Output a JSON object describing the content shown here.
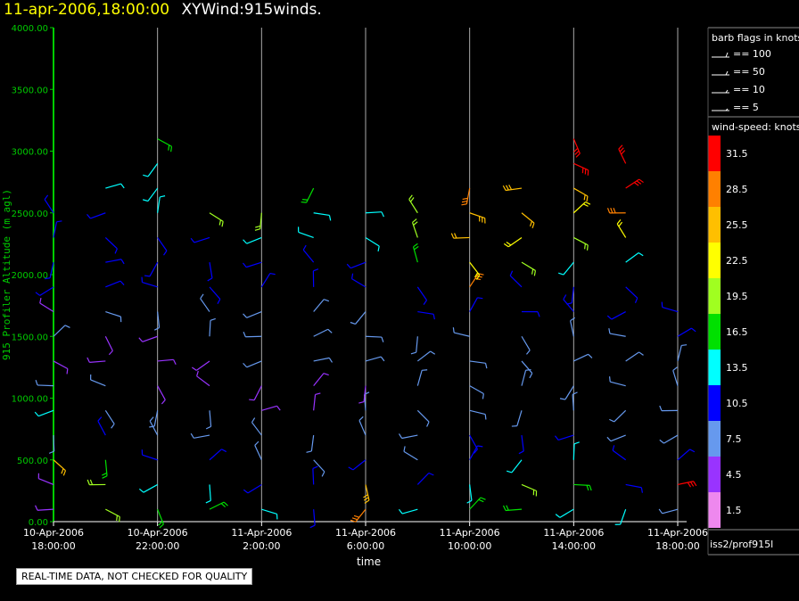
{
  "header": {
    "time": "11-apr-2006,18:00:00",
    "name": "XYWind:915winds."
  },
  "disclaimer": "REAL-TIME DATA, NOT CHECKED FOR QUALITY",
  "chart_data": {
    "type": "scatter",
    "title": "",
    "ylabel": "915 Profiler Altitude (m agl)",
    "xlabel": "time",
    "ylim": [
      0,
      4000
    ],
    "yticks": [
      "0.00",
      "500.00",
      "1000.00",
      "1500.00",
      "2000.00",
      "2500.00",
      "3000.00",
      "3500.00",
      "4000.00"
    ],
    "xlim": [
      "10-Apr-2006 18:00",
      "11-Apr-2006 18:00"
    ],
    "xticks": [
      {
        "line1": "10-Apr-2006",
        "line2": "18:00:00"
      },
      {
        "line1": "10-Apr-2006",
        "line2": "22:00:00"
      },
      {
        "line1": "11-Apr-2006",
        "line2": "2:00:00"
      },
      {
        "line1": "11-Apr-2006",
        "line2": "6:00:00"
      },
      {
        "line1": "11-Apr-2006",
        "line2": "10:00:00"
      },
      {
        "line1": "11-Apr-2006",
        "line2": "14:00:00"
      },
      {
        "line1": "11-Apr-2006",
        "line2": "18:00:00"
      }
    ],
    "grid": "vertical",
    "series": [
      {
        "time": "10-Apr-2006 18:00",
        "alt": [
          100,
          300,
          500,
          700,
          900,
          1100,
          1300,
          1500,
          1700,
          1900,
          2100,
          2300,
          2500
        ],
        "speed": [
          3,
          5,
          24,
          8,
          12,
          7,
          5,
          6,
          4,
          9,
          11,
          10,
          11
        ]
      },
      {
        "time": "10-Apr-2006 20:00",
        "alt": [
          100,
          300,
          500,
          700,
          900,
          1100,
          1300,
          1500,
          1700,
          1900,
          2100,
          2300,
          2500,
          2700
        ],
        "speed": [
          18,
          20,
          16,
          10,
          7,
          6,
          5,
          5,
          6,
          9,
          10,
          11,
          10,
          12
        ]
      },
      {
        "time": "10-Apr-2006 22:00",
        "alt": [
          100,
          300,
          500,
          700,
          900,
          1100,
          1300,
          1500,
          1700,
          1900,
          2100,
          2300,
          2500,
          2700,
          2900,
          3100
        ],
        "speed": [
          17,
          12,
          10,
          8,
          6,
          5,
          5,
          5,
          7,
          9,
          10,
          11,
          12,
          12,
          14,
          16
        ]
      },
      {
        "time": "11-Apr-2006 00:00",
        "alt": [
          100,
          300,
          500,
          700,
          900,
          1100,
          1300,
          1500,
          1700,
          1900,
          2100,
          2300,
          2500
        ],
        "speed": [
          15,
          12,
          9,
          7,
          6,
          5,
          5,
          6,
          7,
          9,
          10,
          11,
          18
        ]
      },
      {
        "time": "11-Apr-2006 02:00",
        "alt": [
          100,
          300,
          500,
          700,
          900,
          1100,
          1300,
          1500,
          1700,
          1900,
          2100,
          2300,
          2500
        ],
        "speed": [
          12,
          10,
          8,
          6,
          5,
          5,
          6,
          7,
          8,
          10,
          11,
          12,
          18
        ]
      },
      {
        "time": "11-Apr-2006 04:00",
        "alt": [
          100,
          300,
          500,
          700,
          900,
          1100,
          1300,
          1500,
          1700,
          1900,
          2100,
          2300,
          2500,
          2700
        ],
        "speed": [
          10,
          9,
          7,
          6,
          5,
          5,
          6,
          7,
          8,
          10,
          11,
          12,
          14,
          15
        ]
      },
      {
        "time": "11-Apr-2006 06:00",
        "alt": [
          100,
          300,
          500,
          700,
          900,
          1100,
          1300,
          1500,
          1700,
          1900,
          2100,
          2300,
          2500
        ],
        "speed": [
          28,
          26,
          9,
          7,
          6,
          5,
          6,
          7,
          8,
          10,
          11,
          12,
          13
        ]
      },
      {
        "time": "11-Apr-2006 08:00",
        "alt": [
          100,
          300,
          500,
          700,
          900,
          1100,
          1300,
          1500,
          1700,
          1900,
          2100,
          2300,
          2500
        ],
        "speed": [
          12,
          10,
          8,
          7,
          6,
          6,
          7,
          8,
          10,
          11,
          15,
          18,
          19
        ]
      },
      {
        "time": "11-Apr-2006 10:00",
        "alt": [
          100,
          300,
          500,
          700,
          900,
          1100,
          1300,
          1500,
          1700,
          1900,
          2100,
          2300,
          2500,
          2700
        ],
        "speed": [
          15,
          13,
          11,
          9,
          7,
          6,
          6,
          7,
          10,
          28,
          22,
          24,
          26,
          27
        ]
      },
      {
        "time": "11-Apr-2006 12:00",
        "alt": [
          100,
          300,
          500,
          700,
          900,
          1100,
          1300,
          1500,
          1700,
          1900,
          2100,
          2300,
          2500,
          2700
        ],
        "speed": [
          16,
          18,
          14,
          9,
          7,
          6,
          6,
          7,
          9,
          11,
          20,
          22,
          24,
          25
        ]
      },
      {
        "time": "11-Apr-2006 14:00",
        "alt": [
          100,
          300,
          500,
          700,
          900,
          1100,
          1300,
          1500,
          1700,
          1900,
          2100,
          2300,
          2500,
          2700,
          2900,
          3100
        ],
        "speed": [
          14,
          16,
          12,
          9,
          7,
          6,
          6,
          7,
          9,
          11,
          13,
          20,
          23,
          24,
          30,
          32
        ]
      },
      {
        "time": "11-Apr-2006 16:00",
        "alt": [
          100,
          300,
          500,
          700,
          900,
          1100,
          1300,
          1500,
          1700,
          1900,
          2100,
          2300,
          2500,
          2700,
          2900
        ],
        "speed": [
          12,
          11,
          10,
          8,
          7,
          6,
          6,
          7,
          9,
          11,
          14,
          22,
          27,
          30,
          31
        ]
      },
      {
        "time": "11-Apr-2006 18:00",
        "alt": [
          100,
          300,
          500,
          700,
          900,
          1100,
          1300,
          1500,
          1700
        ],
        "speed": [
          8,
          30,
          9,
          8,
          7,
          6,
          7,
          9,
          11
        ]
      }
    ]
  },
  "legend": {
    "barb_title": "barb flags in knots",
    "barb_items": [
      "== 100",
      "== 50",
      "== 10",
      "== 5"
    ],
    "speed_title": "wind-speed: knots",
    "scale": [
      {
        "label": "31.5",
        "color": "#ff0000"
      },
      {
        "label": "28.5",
        "color": "#ff8000"
      },
      {
        "label": "25.5",
        "color": "#ffbf00"
      },
      {
        "label": "22.5",
        "color": "#ffff00"
      },
      {
        "label": "19.5",
        "color": "#a0ff20"
      },
      {
        "label": "16.5",
        "color": "#00e000"
      },
      {
        "label": "13.5",
        "color": "#00ffff"
      },
      {
        "label": "10.5",
        "color": "#0000ff"
      },
      {
        "label": "7.5",
        "color": "#6699ee"
      },
      {
        "label": "4.5",
        "color": "#9933ff"
      },
      {
        "label": "1.5",
        "color": "#ee88ee"
      }
    ],
    "source": "iss2/prof915l"
  }
}
